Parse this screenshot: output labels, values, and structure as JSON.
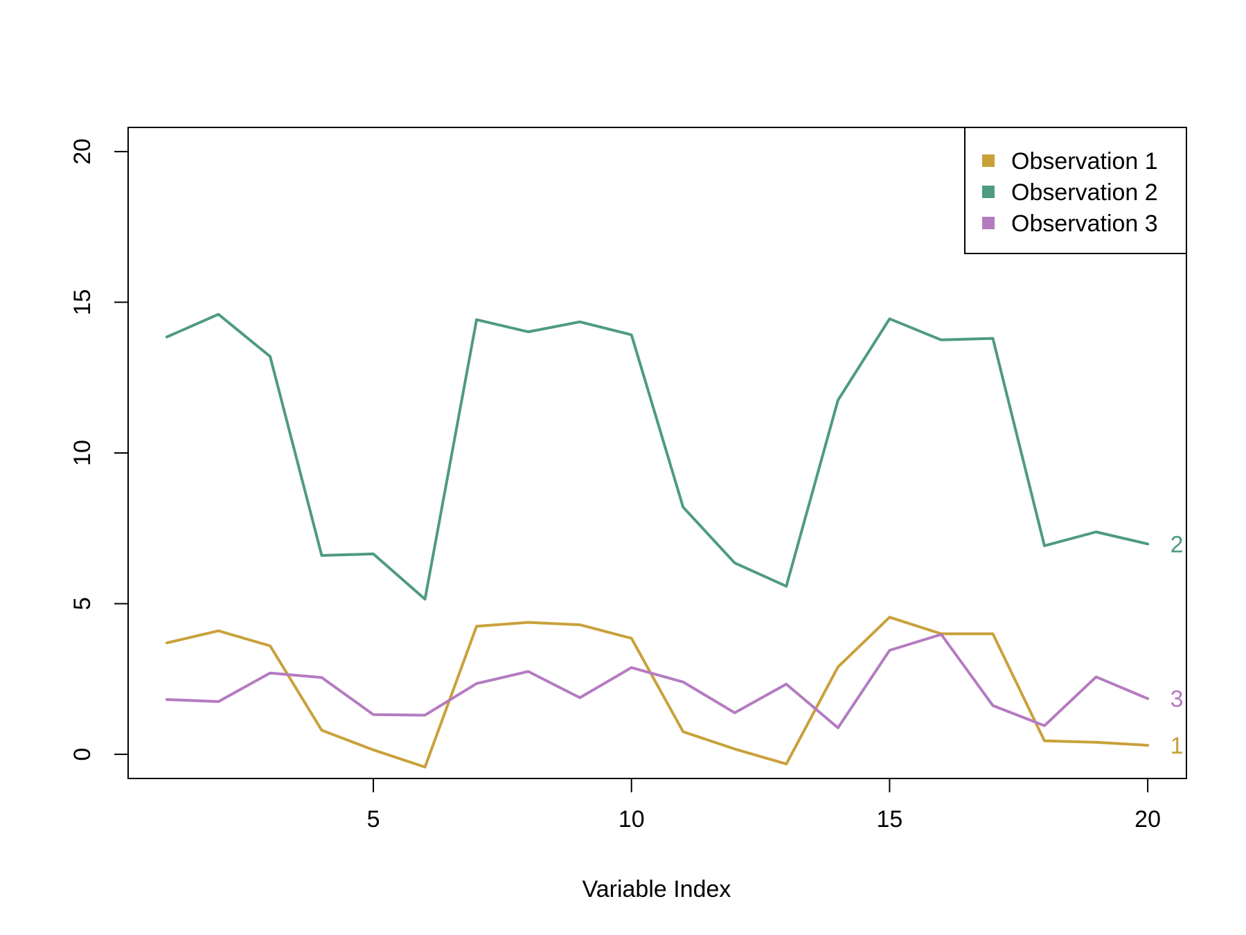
{
  "chart_data": {
    "type": "line",
    "title": "",
    "xlabel": "Variable Index",
    "ylabel": "",
    "xlim": [
      0.25,
      20.75
    ],
    "ylim": [
      -0.8,
      20.8
    ],
    "x_ticks": [
      5,
      10,
      15,
      20
    ],
    "y_ticks": [
      0,
      5,
      10,
      15,
      20
    ],
    "grid": false,
    "legend_position": "top-right",
    "x": [
      1,
      2,
      3,
      4,
      5,
      6,
      7,
      8,
      9,
      10,
      11,
      12,
      13,
      14,
      15,
      16,
      17,
      18,
      19,
      20
    ],
    "series": [
      {
        "name": "Observation 1",
        "end_label": "1",
        "color": "#C9A13B",
        "values": [
          3.7,
          4.1,
          3.6,
          0.8,
          0.15,
          -0.42,
          4.25,
          4.38,
          4.3,
          3.85,
          0.75,
          0.18,
          -0.32,
          2.9,
          4.55,
          4.0,
          4.0,
          0.45,
          0.4,
          0.3
        ]
      },
      {
        "name": "Observation 2",
        "end_label": "2",
        "color": "#4E9A82",
        "values": [
          13.85,
          14.6,
          13.2,
          6.6,
          6.65,
          5.15,
          14.42,
          14.02,
          14.35,
          13.92,
          8.2,
          6.35,
          5.58,
          11.75,
          14.45,
          13.75,
          13.8,
          6.92,
          7.38,
          6.98
        ]
      },
      {
        "name": "Observation 3",
        "end_label": "3",
        "color": "#B47BC0",
        "values": [
          1.82,
          1.75,
          2.7,
          2.55,
          1.32,
          1.3,
          2.35,
          2.75,
          1.88,
          2.88,
          2.4,
          1.38,
          2.33,
          0.88,
          3.45,
          3.98,
          1.62,
          0.95,
          2.57,
          1.85
        ]
      }
    ]
  }
}
